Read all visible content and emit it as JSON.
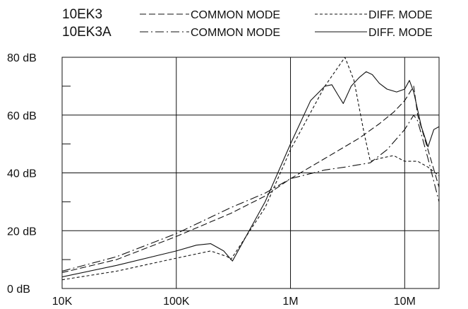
{
  "chart_data": {
    "type": "line",
    "title": "",
    "xlabel": "",
    "ylabel": "",
    "x_scale": "log",
    "xlim": [
      10000,
      20000000
    ],
    "ylim": [
      0,
      80
    ],
    "grid": true,
    "x_ticks": [
      {
        "value": 10000,
        "label": "10K"
      },
      {
        "value": 100000,
        "label": "100K"
      },
      {
        "value": 1000000,
        "label": "1M"
      },
      {
        "value": 10000000,
        "label": "10M"
      }
    ],
    "y_ticks": [
      {
        "value": 0,
        "label": "0 dB"
      },
      {
        "value": 20,
        "label": "20 dB"
      },
      {
        "value": 40,
        "label": "40 dB"
      },
      {
        "value": 60,
        "label": "60 dB"
      },
      {
        "value": 80,
        "label": "80 dB"
      }
    ],
    "legend": {
      "placement": "top",
      "groups": [
        {
          "name": "10EK3",
          "entries": [
            {
              "label": "COMMON MODE",
              "style": "long-dash"
            },
            {
              "label": "DIFF. MODE",
              "style": "short-dash"
            }
          ]
        },
        {
          "name": "10EK3A",
          "entries": [
            {
              "label": "COMMON MODE",
              "style": "dash-dot"
            },
            {
              "label": "DIFF. MODE",
              "style": "solid"
            }
          ]
        }
      ]
    },
    "series": [
      {
        "name": "10EK3 COMMON MODE",
        "style": "long-dash",
        "points": [
          [
            10000,
            5.5
          ],
          [
            30000,
            10
          ],
          [
            100000,
            18
          ],
          [
            300000,
            26
          ],
          [
            600000,
            32
          ],
          [
            1000000,
            38
          ],
          [
            2000000,
            45
          ],
          [
            4000000,
            52
          ],
          [
            6000000,
            57
          ],
          [
            8000000,
            61
          ],
          [
            10000000,
            65
          ],
          [
            12000000,
            70
          ],
          [
            13000000,
            60
          ],
          [
            16000000,
            48
          ],
          [
            20000000,
            35
          ]
        ]
      },
      {
        "name": "10EK3 DIFF. MODE",
        "style": "short-dash",
        "points": [
          [
            10000,
            3
          ],
          [
            30000,
            6
          ],
          [
            100000,
            10.5
          ],
          [
            200000,
            13
          ],
          [
            280000,
            11
          ],
          [
            300000,
            10
          ],
          [
            600000,
            28
          ],
          [
            1000000,
            48
          ],
          [
            2000000,
            70
          ],
          [
            3000000,
            80
          ],
          [
            3600000,
            72
          ],
          [
            4400000,
            54
          ],
          [
            5000000,
            44
          ],
          [
            6000000,
            45
          ],
          [
            8000000,
            46
          ],
          [
            10000000,
            44
          ],
          [
            13000000,
            44
          ],
          [
            16000000,
            42
          ],
          [
            20000000,
            39
          ]
        ]
      },
      {
        "name": "10EK3A COMMON MODE",
        "style": "dash-dot",
        "points": [
          [
            10000,
            6
          ],
          [
            30000,
            11
          ],
          [
            100000,
            19
          ],
          [
            300000,
            28
          ],
          [
            600000,
            33
          ],
          [
            1000000,
            38
          ],
          [
            2000000,
            41
          ],
          [
            3000000,
            42
          ],
          [
            5000000,
            43.5
          ],
          [
            7000000,
            48
          ],
          [
            10000000,
            55
          ],
          [
            12000000,
            60
          ],
          [
            13000000,
            58
          ],
          [
            16000000,
            45
          ],
          [
            20000000,
            30
          ]
        ]
      },
      {
        "name": "10EK3A DIFF. MODE",
        "style": "solid",
        "points": [
          [
            10000,
            4
          ],
          [
            30000,
            8
          ],
          [
            100000,
            13
          ],
          [
            150000,
            15
          ],
          [
            200000,
            15.5
          ],
          [
            260000,
            13
          ],
          [
            310000,
            9.5
          ],
          [
            600000,
            30
          ],
          [
            1000000,
            50
          ],
          [
            1500000,
            65
          ],
          [
            2000000,
            70
          ],
          [
            2300000,
            70.5
          ],
          [
            2600000,
            67
          ],
          [
            2900000,
            64
          ],
          [
            3400000,
            70
          ],
          [
            4000000,
            73
          ],
          [
            4600000,
            75
          ],
          [
            5200000,
            74
          ],
          [
            6000000,
            71
          ],
          [
            7000000,
            69
          ],
          [
            8500000,
            68
          ],
          [
            10000000,
            69
          ],
          [
            11000000,
            72
          ],
          [
            12000000,
            68
          ],
          [
            14000000,
            56
          ],
          [
            16000000,
            49
          ],
          [
            18000000,
            55
          ],
          [
            20000000,
            56
          ]
        ]
      }
    ]
  }
}
